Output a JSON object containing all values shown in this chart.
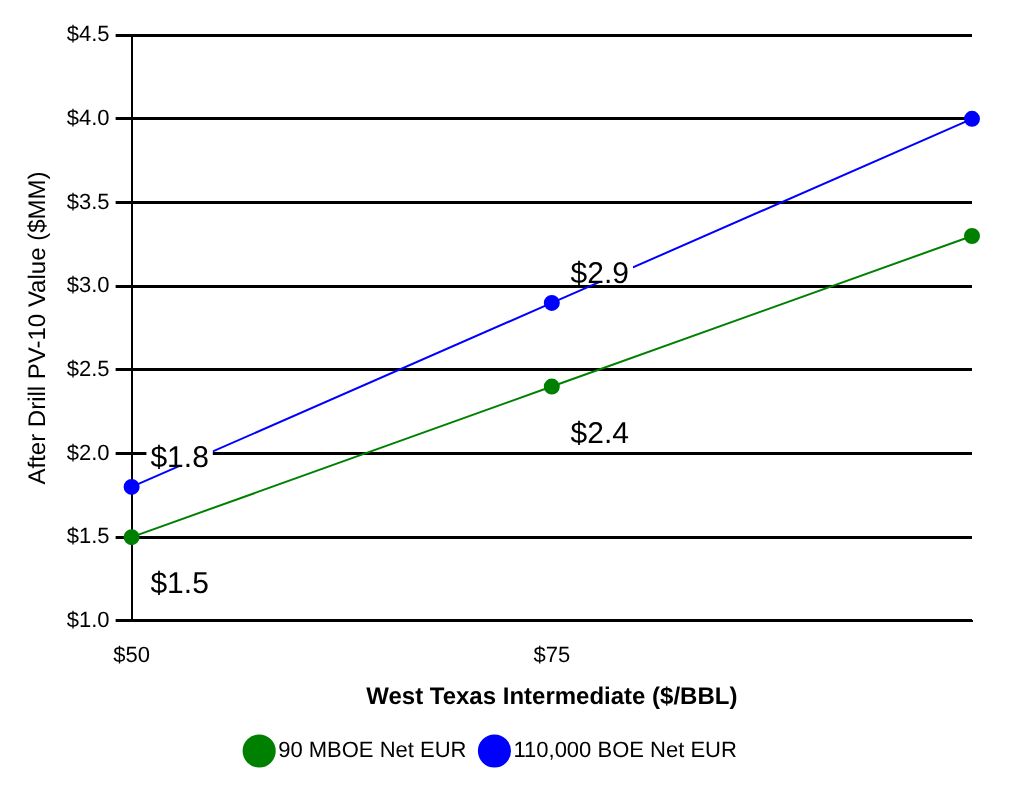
{
  "chart_data": {
    "type": "line",
    "xlabel": "West Texas Intermediate ($/BBL)",
    "ylabel": "After Drill PV-10 Value ($MM)",
    "categories": [
      "$50",
      "$75",
      null
    ],
    "series": [
      {
        "name": "90 MBOE Net EUR",
        "color": "#008000",
        "values": [
          1.5,
          2.4,
          3.3
        ],
        "value_labels": [
          "$1.5",
          "$2.4",
          null
        ]
      },
      {
        "name": "110,000 BOE Net EUR",
        "color": "#0000ff",
        "values": [
          1.8,
          2.9,
          4.0
        ],
        "value_labels": [
          "$1.8",
          "$2.9",
          null
        ]
      }
    ],
    "ylim": [
      1,
      4.5
    ],
    "yticks": [
      {
        "value": 1,
        "label": "$1.0"
      },
      {
        "value": 1.5,
        "label": "$1.5"
      },
      {
        "value": 2,
        "label": "$2.0"
      },
      {
        "value": 2.5,
        "label": "$2.5"
      },
      {
        "value": 3,
        "label": "$3.0"
      },
      {
        "value": 3.5,
        "label": "$3.5"
      },
      {
        "value": 4,
        "label": "$4.0"
      },
      {
        "value": 4.5,
        "label": "$4.5"
      }
    ],
    "grid": "y",
    "legend": "bottom",
    "marker": "circle",
    "line_style": "solid"
  }
}
